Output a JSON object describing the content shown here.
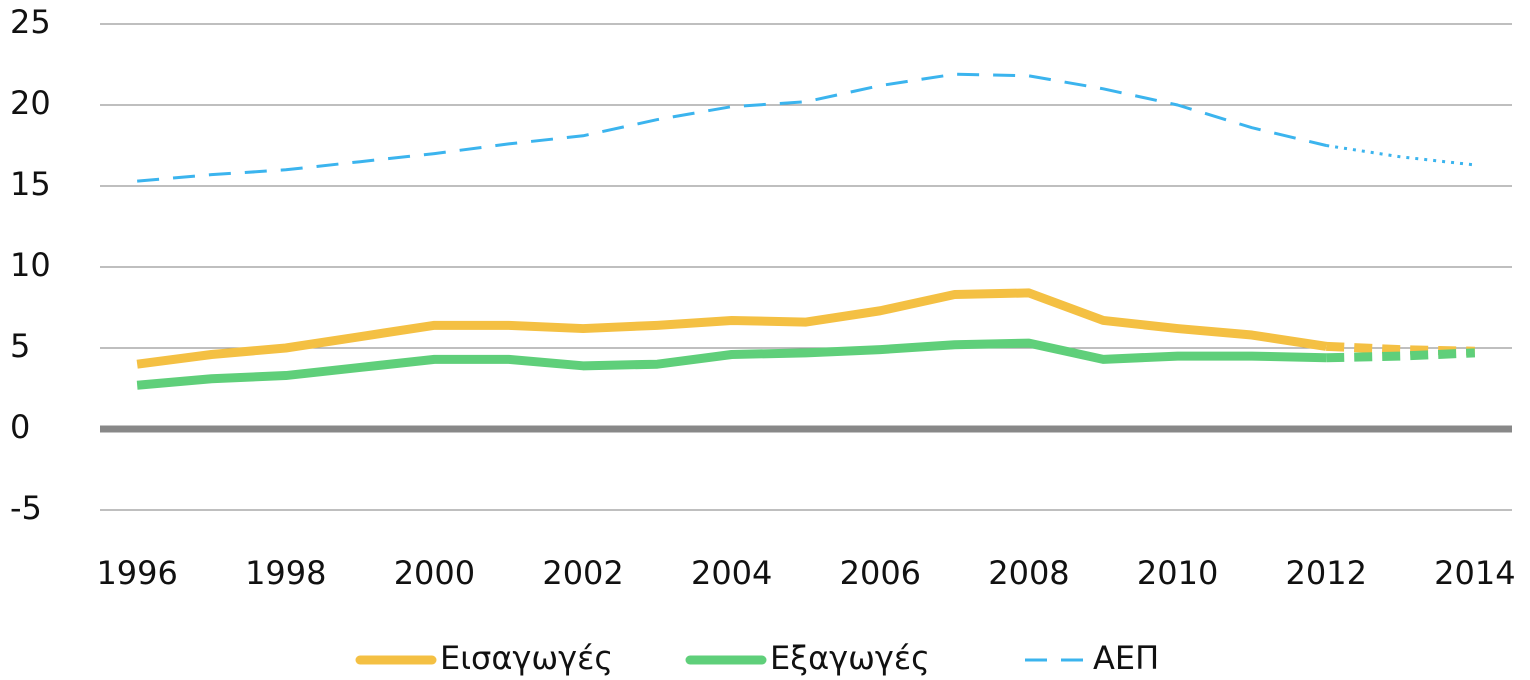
{
  "chart_data": {
    "type": "line",
    "x": [
      1996,
      1997,
      1998,
      1999,
      2000,
      2001,
      2002,
      2003,
      2004,
      2005,
      2006,
      2007,
      2008,
      2009,
      2010,
      2011,
      2012,
      2013,
      2014
    ],
    "series": [
      {
        "name": "Εισαγωγές",
        "color": "#f4c043",
        "style": "solid",
        "values": [
          4.0,
          4.6,
          5.0,
          5.7,
          6.4,
          6.4,
          6.2,
          6.4,
          6.7,
          6.6,
          7.3,
          8.3,
          8.4,
          6.7,
          6.2,
          5.8,
          5.1,
          4.9,
          4.8
        ]
      },
      {
        "name": "Εξαγωγές",
        "color": "#5fcf7a",
        "style": "solid",
        "values": [
          2.7,
          3.1,
          3.3,
          3.8,
          4.3,
          4.3,
          3.9,
          4.0,
          4.6,
          4.7,
          4.9,
          5.2,
          5.3,
          4.3,
          4.5,
          4.5,
          4.4,
          4.5,
          4.7
        ]
      },
      {
        "name": "ΑΕΠ",
        "color": "#3bb4ee",
        "style": "dashed",
        "values": [
          15.3,
          15.7,
          16.0,
          16.5,
          17.0,
          17.6,
          18.1,
          19.1,
          19.9,
          20.2,
          21.2,
          21.9,
          21.8,
          21.0,
          20.0,
          18.6,
          17.5,
          16.8,
          16.3
        ]
      }
    ],
    "projected_from": 2012,
    "xlim": [
      1995.5,
      2014.5
    ],
    "xticks": [
      1996,
      1998,
      2000,
      2002,
      2004,
      2006,
      2008,
      2010,
      2012,
      2014
    ],
    "ylim": [
      -5,
      25
    ],
    "yticks": [
      -5,
      0,
      5,
      10,
      15,
      20,
      25
    ],
    "grid": true,
    "legend": "bottom"
  }
}
